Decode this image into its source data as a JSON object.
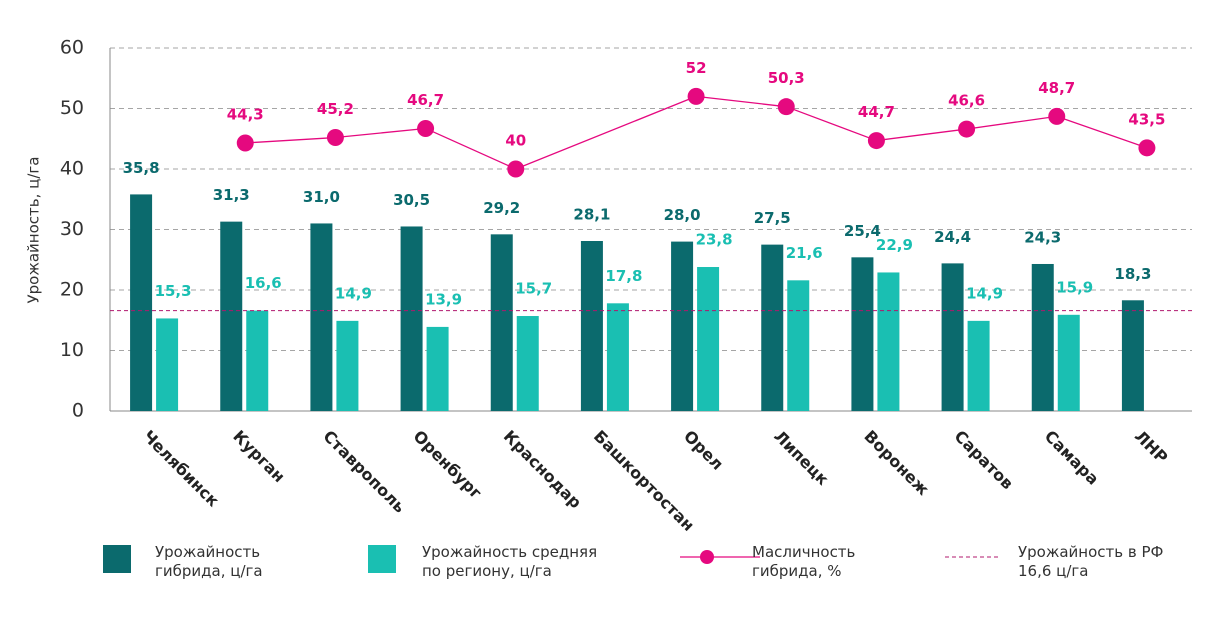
{
  "chart_data": {
    "type": "bar",
    "ylabel": "Урожайность, ц/га",
    "categories": [
      "Челябинск",
      "Курган",
      "Ставрополь",
      "Оренбург",
      "Краснодар",
      "Башкортостан",
      "Орел",
      "Липецк",
      "Воронеж",
      "Саратов",
      "Самара",
      "ЛНР"
    ],
    "series": [
      {
        "name": "Урожайность\nгибрида, ц/га",
        "type": "bar",
        "color": "#0b6a6d",
        "values": [
          35.8,
          31.3,
          31.0,
          30.5,
          29.2,
          28.1,
          28.0,
          27.5,
          25.4,
          24.4,
          24.3,
          18.3
        ],
        "value_labels": [
          "35,8",
          "31,3",
          "31,0",
          "30,5",
          "29,2",
          "28,1",
          "28,0",
          "27,5",
          "25,4",
          "24,4",
          "24,3",
          "18,3"
        ]
      },
      {
        "name": "Урожайность средняя\nпо региону, ц/га",
        "type": "bar",
        "color": "#1abfb2",
        "values": [
          15.3,
          16.6,
          14.9,
          13.9,
          15.7,
          17.8,
          23.8,
          21.6,
          22.9,
          14.9,
          15.9,
          null
        ],
        "value_labels": [
          "15,3",
          "16,6",
          "14,9",
          "13,9",
          "15,7",
          "17,8",
          "23,8",
          "21,6",
          "22,9",
          "14,9",
          "15,9",
          null
        ]
      },
      {
        "name": "Масличность\nгибрида, %",
        "type": "line",
        "color": "#e5097f",
        "values": [
          null,
          44.3,
          45.2,
          46.7,
          40,
          null,
          52,
          50.3,
          44.7,
          46.6,
          48.7,
          43.5
        ],
        "value_labels": [
          null,
          "44,3",
          "45,2",
          "46,7",
          "40",
          null,
          "52",
          "50,3",
          "44,7",
          "46,6",
          "48,7",
          "43,5"
        ]
      }
    ],
    "reference_line": {
      "value": 16.6,
      "label": "Урожайность в РФ\n16,6 ц/га",
      "color": "#b0186e"
    },
    "ylim": [
      0,
      60
    ],
    "yticks": [
      0,
      10,
      20,
      30,
      40,
      50,
      60
    ],
    "grid": true
  }
}
